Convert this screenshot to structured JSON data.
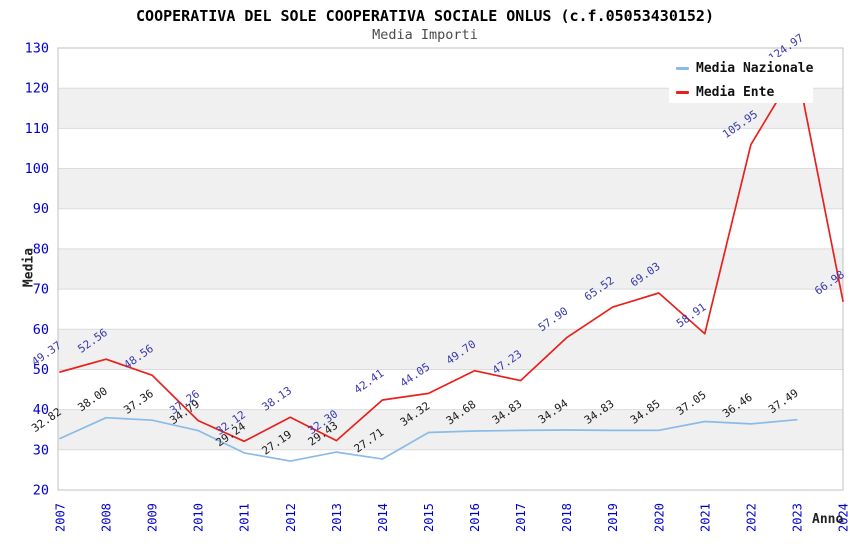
{
  "title": "COOPERATIVA DEL SOLE COOPERATIVA SOCIALE ONLUS (c.f.05053430152)",
  "subtitle": "Media Importi",
  "y_axis": {
    "label": "Media",
    "ticks": [
      130,
      120,
      110,
      100,
      90,
      80,
      70,
      60,
      50,
      40,
      30,
      20
    ]
  },
  "x_axis": {
    "label": "Anno",
    "ticks": [
      "2007",
      "2008",
      "2009",
      "2010",
      "2011",
      "2012",
      "2013",
      "2014",
      "2015",
      "2016",
      "2017",
      "2018",
      "2019",
      "2020",
      "2021",
      "2022",
      "2023",
      "2024"
    ]
  },
  "legend": {
    "position": "top-right",
    "items": [
      {
        "label": "Media Nazionale",
        "color": "#8abbe8"
      },
      {
        "label": "Media Ente",
        "color": "#e8211d"
      }
    ]
  },
  "colors": {
    "axis_tick": "#0000cc",
    "band": "#f0f0f0",
    "grid": "#dcdcdc",
    "border": "#c0c0c0",
    "title": "#000000",
    "subtitle": "#4a4a4a"
  },
  "chart_data": {
    "type": "line",
    "title": "COOPERATIVA DEL SOLE COOPERATIVA SOCIALE ONLUS (c.f.05053430152)",
    "subtitle": "Media Importi",
    "xlabel": "Anno",
    "ylabel": "Media",
    "x": [
      2007,
      2008,
      2009,
      2010,
      2011,
      2012,
      2013,
      2014,
      2015,
      2016,
      2017,
      2018,
      2019,
      2020,
      2021,
      2022,
      2023,
      2024
    ],
    "ylim": [
      20,
      130
    ],
    "y_tick_step": 10,
    "grid": "horizontal",
    "gray_bands": [
      [
        30,
        40
      ],
      [
        50,
        60
      ],
      [
        70,
        80
      ],
      [
        90,
        100
      ],
      [
        110,
        120
      ]
    ],
    "legend_position": "top-right",
    "series": [
      {
        "id": "media-nazionale",
        "name": "Media Nazionale",
        "color": "#8abbe8",
        "label_color": "#1a1a1a",
        "values": [
          32.82,
          38.0,
          37.36,
          34.79,
          29.24,
          27.19,
          29.43,
          27.71,
          34.32,
          34.68,
          34.83,
          34.94,
          34.83,
          34.85,
          37.05,
          36.46,
          37.49,
          null
        ]
      },
      {
        "id": "media-ente",
        "name": "Media Ente",
        "color": "#e8211d",
        "label_color": "#3939ae",
        "values": [
          49.37,
          52.56,
          48.56,
          37.26,
          32.12,
          38.13,
          32.3,
          42.41,
          44.05,
          49.7,
          47.23,
          57.9,
          65.52,
          69.03,
          58.91,
          105.95,
          124.97,
          66.98
        ]
      }
    ]
  }
}
